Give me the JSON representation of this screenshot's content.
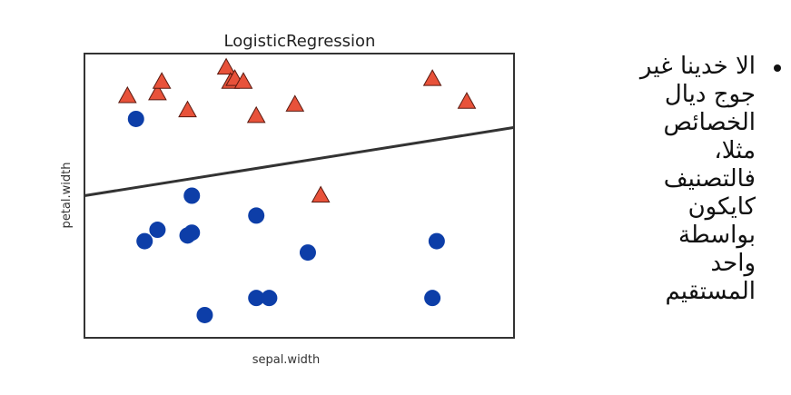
{
  "chart_data": {
    "type": "scatter",
    "title": "LogisticRegression",
    "xlabel": "sepal.width",
    "ylabel": "petal.width",
    "xlim": [
      0,
      10
    ],
    "ylim": [
      0,
      10
    ],
    "series": [
      {
        "marker": "triangle",
        "color": "#e8523a",
        "points": [
          [
            1.0,
            8.5
          ],
          [
            1.7,
            8.6
          ],
          [
            1.8,
            9.0
          ],
          [
            2.4,
            8.0
          ],
          [
            3.3,
            9.5
          ],
          [
            3.4,
            9.0
          ],
          [
            3.5,
            9.1
          ],
          [
            3.7,
            9.0
          ],
          [
            4.0,
            7.8
          ],
          [
            4.9,
            8.2
          ],
          [
            5.5,
            5.0
          ],
          [
            8.1,
            9.1
          ],
          [
            8.9,
            8.3
          ]
        ]
      },
      {
        "marker": "circle",
        "color": "#0d3ea8",
        "points": [
          [
            1.2,
            7.7
          ],
          [
            1.4,
            3.4
          ],
          [
            1.7,
            3.8
          ],
          [
            2.4,
            3.6
          ],
          [
            2.5,
            3.7
          ],
          [
            2.5,
            5.0
          ],
          [
            2.8,
            0.8
          ],
          [
            4.0,
            1.4
          ],
          [
            4.0,
            4.3
          ],
          [
            4.3,
            1.4
          ],
          [
            5.2,
            3.0
          ],
          [
            8.1,
            1.4
          ],
          [
            8.2,
            3.4
          ]
        ]
      }
    ],
    "decision_boundary": {
      "x": [
        0,
        10
      ],
      "y": [
        5.0,
        7.4
      ],
      "color": "#333333"
    },
    "grid": false,
    "ticks": false
  },
  "slide": {
    "bullet_lines": [
      "الا خدينا غير",
      "جوج ديال",
      "الخصائص",
      "مثلا،",
      "فالتصنيف",
      "كايكون",
      "بواسطة",
      "واحد",
      "المستقيم"
    ]
  }
}
